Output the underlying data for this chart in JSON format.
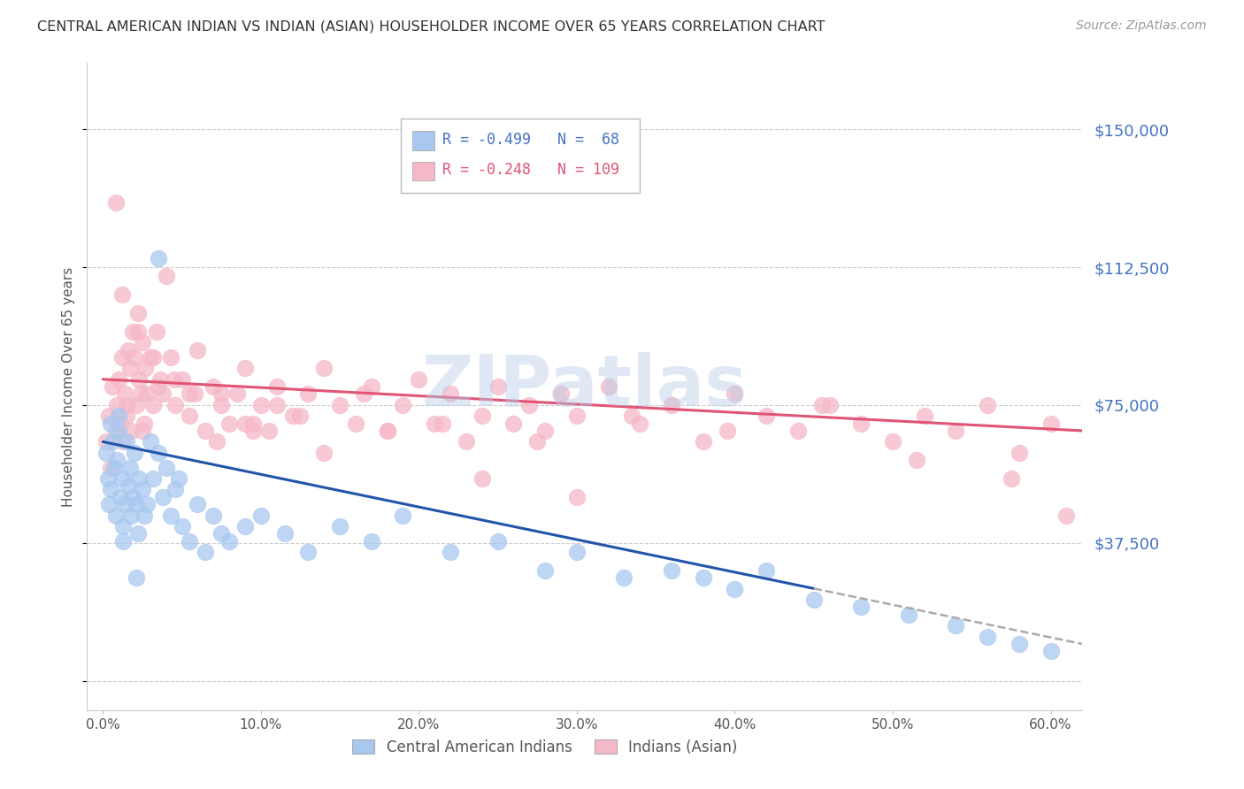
{
  "title": "CENTRAL AMERICAN INDIAN VS INDIAN (ASIAN) HOUSEHOLDER INCOME OVER 65 YEARS CORRELATION CHART",
  "source": "Source: ZipAtlas.com",
  "ylabel": "Householder Income Over 65 years",
  "xlabel_ticks": [
    "0.0%",
    "10.0%",
    "20.0%",
    "30.0%",
    "40.0%",
    "50.0%",
    "60.0%"
  ],
  "xlabel_vals": [
    0.0,
    10.0,
    20.0,
    30.0,
    40.0,
    50.0,
    60.0
  ],
  "ytick_vals": [
    0,
    37500,
    75000,
    112500,
    150000
  ],
  "ytick_labels": [
    "",
    "$37,500",
    "$75,000",
    "$112,500",
    "$150,000"
  ],
  "xlim": [
    -1.0,
    62.0
  ],
  "ylim": [
    -8000,
    168000
  ],
  "blue_label": "Central American Indians",
  "pink_label": "Indians (Asian)",
  "blue_color": "#a8c8f0",
  "pink_color": "#f5b8c8",
  "blue_line_color": "#2255aa",
  "pink_line_color": "#e05575",
  "legend_R_blue": "R = -0.499",
  "legend_N_blue": "N =  68",
  "legend_R_pink": "R = -0.248",
  "legend_N_pink": "N = 109",
  "blue_scatter_x": [
    0.2,
    0.3,
    0.4,
    0.5,
    0.5,
    0.6,
    0.7,
    0.8,
    0.9,
    1.0,
    1.0,
    1.1,
    1.2,
    1.3,
    1.4,
    1.5,
    1.6,
    1.7,
    1.8,
    1.9,
    2.0,
    2.1,
    2.2,
    2.3,
    2.5,
    2.6,
    2.8,
    3.0,
    3.2,
    3.5,
    3.8,
    4.0,
    4.3,
    4.6,
    5.0,
    5.5,
    6.0,
    6.5,
    7.0,
    7.5,
    8.0,
    9.0,
    10.0,
    11.5,
    13.0,
    15.0,
    17.0,
    19.0,
    22.0,
    25.0,
    28.0,
    30.0,
    33.0,
    36.0,
    38.0,
    40.0,
    42.0,
    45.0,
    48.0,
    51.0,
    54.0,
    56.0,
    58.0,
    60.0,
    3.5,
    4.8,
    2.1,
    1.3
  ],
  "blue_scatter_y": [
    62000,
    55000,
    48000,
    70000,
    52000,
    65000,
    58000,
    45000,
    60000,
    68000,
    72000,
    50000,
    55000,
    42000,
    48000,
    65000,
    53000,
    58000,
    45000,
    50000,
    62000,
    48000,
    40000,
    55000,
    52000,
    45000,
    48000,
    65000,
    55000,
    62000,
    50000,
    58000,
    45000,
    52000,
    42000,
    38000,
    48000,
    35000,
    45000,
    40000,
    38000,
    42000,
    45000,
    40000,
    35000,
    42000,
    38000,
    45000,
    35000,
    38000,
    30000,
    35000,
    28000,
    30000,
    28000,
    25000,
    30000,
    22000,
    20000,
    18000,
    15000,
    12000,
    10000,
    8000,
    115000,
    55000,
    28000,
    38000
  ],
  "pink_scatter_x": [
    0.2,
    0.4,
    0.5,
    0.6,
    0.8,
    0.9,
    1.0,
    1.1,
    1.2,
    1.3,
    1.4,
    1.5,
    1.6,
    1.7,
    1.8,
    1.9,
    2.0,
    2.1,
    2.2,
    2.3,
    2.4,
    2.5,
    2.6,
    2.7,
    2.8,
    3.0,
    3.2,
    3.4,
    3.6,
    3.8,
    4.0,
    4.3,
    4.6,
    5.0,
    5.5,
    6.0,
    6.5,
    7.0,
    7.5,
    8.0,
    8.5,
    9.0,
    9.5,
    10.0,
    10.5,
    11.0,
    12.0,
    13.0,
    14.0,
    15.0,
    16.0,
    17.0,
    18.0,
    19.0,
    20.0,
    21.0,
    22.0,
    23.0,
    24.0,
    25.0,
    26.0,
    27.0,
    28.0,
    29.0,
    30.0,
    32.0,
    34.0,
    36.0,
    38.0,
    40.0,
    42.0,
    44.0,
    46.0,
    48.0,
    50.0,
    52.0,
    54.0,
    56.0,
    58.0,
    60.0,
    1.5,
    2.5,
    3.5,
    5.5,
    7.5,
    9.5,
    12.5,
    16.5,
    21.5,
    27.5,
    33.5,
    39.5,
    45.5,
    51.5,
    57.5,
    61.0,
    0.8,
    1.2,
    2.2,
    3.2,
    4.5,
    5.8,
    7.2,
    9.0,
    11.0,
    14.0,
    18.0,
    24.0,
    30.0
  ],
  "pink_scatter_y": [
    65000,
    72000,
    58000,
    80000,
    68000,
    75000,
    82000,
    70000,
    88000,
    65000,
    78000,
    72000,
    90000,
    85000,
    68000,
    95000,
    88000,
    75000,
    100000,
    82000,
    78000,
    92000,
    70000,
    85000,
    78000,
    88000,
    75000,
    95000,
    82000,
    78000,
    110000,
    88000,
    75000,
    82000,
    78000,
    90000,
    68000,
    80000,
    75000,
    70000,
    78000,
    85000,
    70000,
    75000,
    68000,
    80000,
    72000,
    78000,
    85000,
    75000,
    70000,
    80000,
    68000,
    75000,
    82000,
    70000,
    78000,
    65000,
    72000,
    80000,
    70000,
    75000,
    68000,
    78000,
    72000,
    80000,
    70000,
    75000,
    65000,
    78000,
    72000,
    68000,
    75000,
    70000,
    65000,
    72000,
    68000,
    75000,
    62000,
    70000,
    75000,
    68000,
    80000,
    72000,
    78000,
    68000,
    72000,
    78000,
    70000,
    65000,
    72000,
    68000,
    75000,
    60000,
    55000,
    45000,
    130000,
    105000,
    95000,
    88000,
    82000,
    78000,
    65000,
    70000,
    75000,
    62000,
    68000,
    55000,
    50000
  ]
}
